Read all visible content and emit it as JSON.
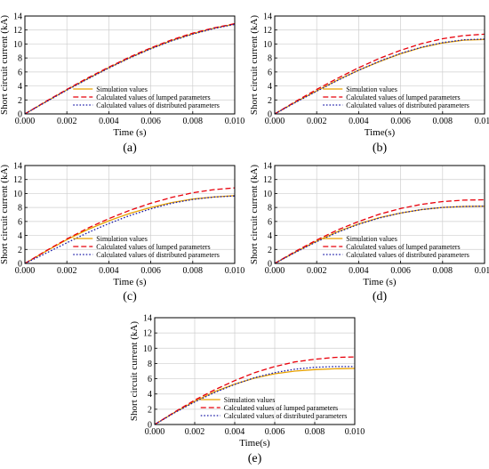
{
  "chart_data": [
    {
      "type": "line",
      "panel_label": "(a)",
      "xlabel": "Time (s)",
      "ylabel": "Short circuit current (kA)",
      "xlim": [
        0,
        0.01
      ],
      "ylim": [
        0,
        14
      ],
      "x_ticks": [
        "0.000",
        "0.002",
        "0.004",
        "0.006",
        "0.008",
        "0.010"
      ],
      "y_ticks": [
        "0",
        "2",
        "4",
        "6",
        "8",
        "10",
        "12",
        "14"
      ],
      "grid": true,
      "legend": "bottom-right",
      "x": [
        0,
        0.001,
        0.002,
        0.003,
        0.004,
        0.005,
        0.006,
        0.007,
        0.008,
        0.009,
        0.01
      ],
      "series": [
        {
          "name": "Simulation values",
          "color": "#E8A200",
          "style": "solid",
          "values": [
            0,
            1.75,
            3.45,
            5.05,
            6.6,
            8.05,
            9.35,
            10.5,
            11.45,
            12.25,
            12.85
          ]
        },
        {
          "name": "Calculated values of lumped parameters",
          "color": "#E8000B",
          "style": "dashed",
          "values": [
            0,
            1.8,
            3.5,
            5.15,
            6.7,
            8.15,
            9.45,
            10.6,
            11.55,
            12.3,
            12.9
          ]
        },
        {
          "name": "Calculated values of distributed parameters",
          "color": "#1B1BA8",
          "style": "dotted",
          "values": [
            0,
            1.7,
            3.4,
            5.0,
            6.55,
            8.0,
            9.3,
            10.45,
            11.4,
            12.2,
            12.8
          ]
        }
      ]
    },
    {
      "type": "line",
      "panel_label": "(b)",
      "xlabel": "Time(s)",
      "ylabel": "Short circuit current (kA)",
      "xlim": [
        0,
        0.01
      ],
      "ylim": [
        0,
        14
      ],
      "x_ticks": [
        "0.000",
        "0.002",
        "0.004",
        "0.006",
        "0.008",
        "0.010"
      ],
      "y_ticks": [
        "0",
        "2",
        "4",
        "6",
        "8",
        "10",
        "12",
        "14"
      ],
      "grid": true,
      "legend": "bottom-right",
      "x": [
        0,
        0.001,
        0.002,
        0.003,
        0.004,
        0.005,
        0.006,
        0.007,
        0.008,
        0.009,
        0.01
      ],
      "series": [
        {
          "name": "Simulation values",
          "color": "#E8A200",
          "style": "solid",
          "values": [
            0,
            1.7,
            3.3,
            4.85,
            6.25,
            7.5,
            8.6,
            9.5,
            10.15,
            10.55,
            10.65
          ]
        },
        {
          "name": "Calculated values of lumped parameters",
          "color": "#E8000B",
          "style": "dashed",
          "values": [
            0,
            1.8,
            3.5,
            5.1,
            6.6,
            7.95,
            9.1,
            10.05,
            10.75,
            11.2,
            11.4
          ]
        },
        {
          "name": "Calculated values of distributed parameters",
          "color": "#1B1BA8",
          "style": "dotted",
          "values": [
            0,
            1.65,
            3.25,
            4.8,
            6.25,
            7.55,
            8.65,
            9.55,
            10.2,
            10.6,
            10.7
          ]
        }
      ]
    },
    {
      "type": "line",
      "panel_label": "(c)",
      "xlabel": "Time (s)",
      "ylabel": "Short circuit current (kA)",
      "xlim": [
        0,
        0.01
      ],
      "ylim": [
        0,
        14
      ],
      "x_ticks": [
        "0.000",
        "0.002",
        "0.004",
        "0.006",
        "0.008",
        "0.010"
      ],
      "y_ticks": [
        "0",
        "2",
        "4",
        "6",
        "8",
        "10",
        "12",
        "14"
      ],
      "grid": true,
      "legend": "bottom-right",
      "x": [
        0,
        0.001,
        0.002,
        0.003,
        0.004,
        0.005,
        0.006,
        0.007,
        0.008,
        0.009,
        0.01
      ],
      "series": [
        {
          "name": "Simulation values",
          "color": "#E8A200",
          "style": "solid",
          "values": [
            0,
            1.75,
            3.4,
            4.85,
            6.1,
            7.15,
            8.0,
            8.7,
            9.2,
            9.5,
            9.7
          ]
        },
        {
          "name": "Calculated values of lumped parameters",
          "color": "#E8000B",
          "style": "dashed",
          "values": [
            0,
            1.8,
            3.5,
            5.05,
            6.4,
            7.6,
            8.6,
            9.45,
            10.1,
            10.55,
            10.8
          ]
        },
        {
          "name": "Calculated values of distributed parameters",
          "color": "#1B1BA8",
          "style": "dotted",
          "values": [
            0,
            1.45,
            2.95,
            4.4,
            5.7,
            6.85,
            7.8,
            8.6,
            9.15,
            9.5,
            9.65
          ]
        }
      ]
    },
    {
      "type": "line",
      "panel_label": "(d)",
      "xlabel": "Time (s)",
      "ylabel": "Short circuit current (kA)",
      "xlim": [
        0,
        0.01
      ],
      "ylim": [
        0,
        14
      ],
      "x_ticks": [
        "0.000",
        "0.002",
        "0.004",
        "0.006",
        "0.008",
        "0.010"
      ],
      "y_ticks": [
        "0",
        "2",
        "4",
        "6",
        "8",
        "10",
        "12",
        "14"
      ],
      "grid": true,
      "legend": "bottom-right",
      "x": [
        0,
        0.001,
        0.002,
        0.003,
        0.004,
        0.005,
        0.006,
        0.007,
        0.008,
        0.009,
        0.01
      ],
      "series": [
        {
          "name": "Simulation values",
          "color": "#E8A200",
          "style": "solid",
          "values": [
            0,
            1.65,
            3.2,
            4.55,
            5.65,
            6.55,
            7.2,
            7.7,
            8.0,
            8.15,
            8.2
          ]
        },
        {
          "name": "Calculated values of lumped parameters",
          "color": "#E8000B",
          "style": "dashed",
          "values": [
            0,
            1.75,
            3.35,
            4.8,
            6.0,
            7.05,
            7.85,
            8.45,
            8.85,
            9.05,
            9.1
          ]
        },
        {
          "name": "Calculated values of distributed parameters",
          "color": "#1B1BA8",
          "style": "dotted",
          "values": [
            0,
            1.6,
            3.1,
            4.45,
            5.6,
            6.5,
            7.2,
            7.7,
            8.0,
            8.15,
            8.2
          ]
        }
      ]
    },
    {
      "type": "line",
      "panel_label": "(e)",
      "xlabel": "Time(s)",
      "ylabel": "Short circuit current (kA)",
      "xlim": [
        0,
        0.01
      ],
      "ylim": [
        0,
        14
      ],
      "x_ticks": [
        "0.000",
        "0.002",
        "0.004",
        "0.006",
        "0.008",
        "0.010"
      ],
      "y_ticks": [
        "0",
        "2",
        "4",
        "6",
        "8",
        "10",
        "12",
        "14"
      ],
      "grid": true,
      "legend": "bottom-right",
      "x": [
        0,
        0.001,
        0.002,
        0.003,
        0.004,
        0.005,
        0.006,
        0.007,
        0.008,
        0.009,
        0.01
      ],
      "series": [
        {
          "name": "Simulation values",
          "color": "#E8A200",
          "style": "solid",
          "values": [
            0,
            1.6,
            3.05,
            4.3,
            5.3,
            6.1,
            6.65,
            7.0,
            7.2,
            7.3,
            7.35
          ]
        },
        {
          "name": "Calculated values of lumped parameters",
          "color": "#E8000B",
          "style": "dashed",
          "values": [
            0,
            1.65,
            3.2,
            4.55,
            5.75,
            6.8,
            7.6,
            8.2,
            8.55,
            8.8,
            8.85
          ]
        },
        {
          "name": "Calculated values of distributed parameters",
          "color": "#1B1BA8",
          "style": "dotted",
          "values": [
            0,
            1.55,
            2.95,
            4.2,
            5.25,
            6.15,
            6.8,
            7.25,
            7.5,
            7.6,
            7.6
          ]
        }
      ]
    }
  ]
}
